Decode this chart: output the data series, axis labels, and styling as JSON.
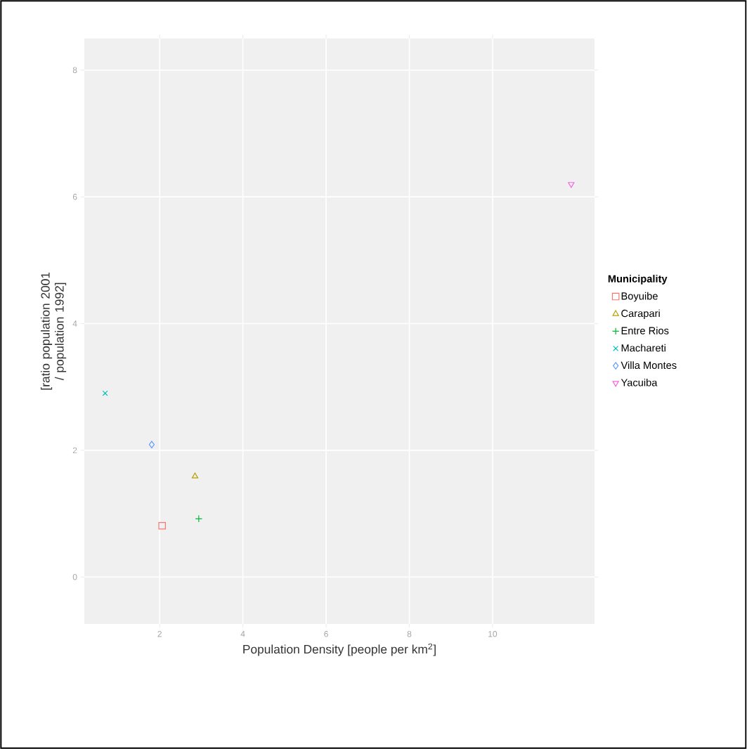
{
  "chart_data": {
    "type": "scatter",
    "xlabel": "Population Density [people per km$^{2}$]",
    "ylabel": "[ratio population 2001 / population 1992]",
    "legend_title": "Municipality",
    "xlim": [
      0.19,
      12.45
    ],
    "ylim": [
      -0.74,
      8.5
    ],
    "xticks": [
      2,
      4,
      6,
      8,
      10
    ],
    "yticks": [
      0,
      2,
      4,
      6,
      8
    ],
    "grid": true,
    "legend": "right",
    "series": [
      {
        "name": "Boyuibe",
        "color": "#F8766D",
        "marker": "square",
        "x": [
          2.06
        ],
        "values": [
          0.81
        ]
      },
      {
        "name": "Carapari",
        "color": "#B79F00",
        "marker": "triangle",
        "x": [
          2.85
        ],
        "values": [
          1.59
        ]
      },
      {
        "name": "Entre Rios",
        "color": "#00BA38",
        "marker": "plus",
        "x": [
          2.94
        ],
        "values": [
          0.92
        ]
      },
      {
        "name": "Machareti",
        "color": "#00BFC4",
        "marker": "cross",
        "x": [
          0.69
        ],
        "values": [
          2.9
        ]
      },
      {
        "name": "Villa Montes",
        "color": "#619CFF",
        "marker": "diamond",
        "x": [
          1.81
        ],
        "values": [
          2.09
        ]
      },
      {
        "name": "Yacuiba",
        "color": "#F564E3",
        "marker": "triangle-down",
        "x": [
          11.89
        ],
        "values": [
          6.2
        ]
      }
    ]
  }
}
